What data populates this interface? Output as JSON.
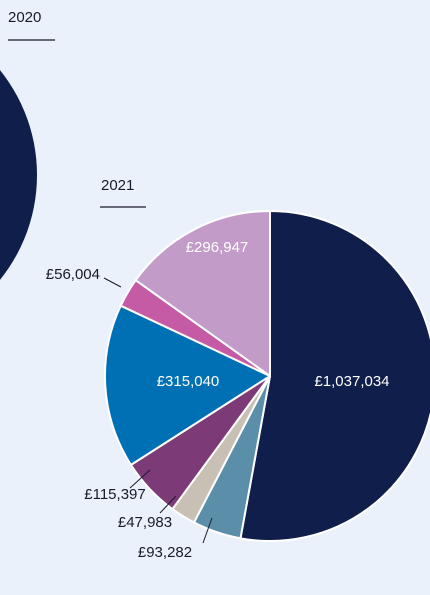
{
  "chart_data": [
    {
      "type": "pie",
      "title": "2020"
    },
    {
      "type": "pie",
      "title": "2021",
      "values": [
        1037034,
        93282,
        47983,
        115397,
        315040,
        56004,
        296947
      ],
      "value_labels": [
        "£1,037,034",
        "£93,282",
        "£47,983",
        "£115,397",
        "£315,040",
        "£56,004",
        "£296,947"
      ],
      "colors": [
        "#0f1e4a",
        "#5b8ea8",
        "#c8c0b4",
        "#7c3b77",
        "#0070b4",
        "#c55ba5",
        "#c29bc9"
      ]
    }
  ]
}
